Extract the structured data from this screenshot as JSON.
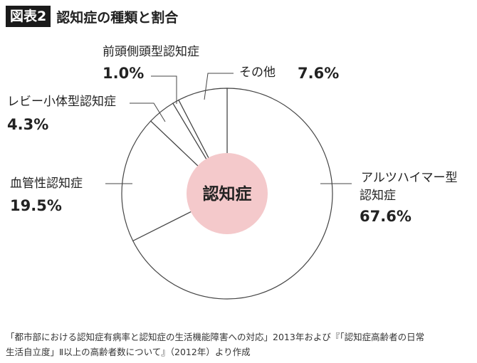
{
  "header": {
    "badge": "図表2",
    "title": "認知症の種類と割合"
  },
  "chart_data": {
    "type": "pie",
    "start": "top",
    "direction": "clockwise",
    "center_label": "認知症",
    "slices": [
      {
        "name": [
          "アルツハイマー型",
          "認知症"
        ],
        "value_label": "67.6%",
        "value": 67.6
      },
      {
        "name": [
          "血管性認知症"
        ],
        "value_label": "19.5%",
        "value": 19.5
      },
      {
        "name": [
          "レビー小体型認知症"
        ],
        "value_label": "4.3%",
        "value": 4.3
      },
      {
        "name": [
          "前頭側頭型認知症"
        ],
        "value_label": "1.0%",
        "value": 1.0
      },
      {
        "name": [
          "その他"
        ],
        "value_label": "7.6%",
        "value": 7.6
      }
    ],
    "colors": {
      "line": "#444444",
      "center_fill": "#f4c9cb",
      "fill": "#ffffff"
    }
  },
  "source": {
    "line1": "「都市部における認知症有病率と認知症の生活機能障害への対応」2013年および『「認知症高齢者の日常",
    "line2": "生活自立度」Ⅱ以上の高齢者数について』（2012年）より作成"
  }
}
